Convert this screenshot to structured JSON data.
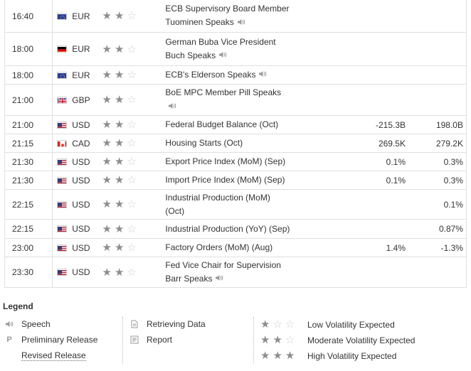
{
  "events": [
    {
      "time": "16:40",
      "currency": "EUR",
      "flag": "eu",
      "stars": 2,
      "event_line1": "ECB Supervisory Board Member",
      "event_line2": "Tuominen Speaks",
      "speech": true,
      "actual": "",
      "forecast": "",
      "previous": ""
    },
    {
      "time": "18:00",
      "currency": "EUR",
      "flag": "de",
      "stars": 2,
      "event_line1": "German Buba Vice President",
      "event_line2": "Buch Speaks",
      "speech": true,
      "actual": "",
      "forecast": "",
      "previous": ""
    },
    {
      "time": "18:00",
      "currency": "EUR",
      "flag": "eu",
      "stars": 2,
      "event_line1": "ECB's Elderson Speaks",
      "event_line2": "",
      "speech": true,
      "actual": "",
      "forecast": "",
      "previous": ""
    },
    {
      "time": "21:00",
      "currency": "GBP",
      "flag": "gb",
      "stars": 2,
      "event_line1": "BoE MPC Member Pill Speaks",
      "event_line2": "",
      "speech": true,
      "actual": "",
      "forecast": "",
      "previous": ""
    },
    {
      "time": "21:00",
      "currency": "USD",
      "flag": "us",
      "stars": 2,
      "event_line1": "Federal Budget Balance (Oct)",
      "event_line2": "",
      "speech": false,
      "actual": "",
      "forecast": "-215.3B",
      "previous": "198.0B"
    },
    {
      "time": "21:15",
      "currency": "CAD",
      "flag": "ca",
      "stars": 2,
      "event_line1": "Housing Starts (Oct)",
      "event_line2": "",
      "speech": false,
      "actual": "",
      "forecast": "269.5K",
      "previous": "279.2K"
    },
    {
      "time": "21:30",
      "currency": "USD",
      "flag": "us",
      "stars": 2,
      "event_line1": "Export Price Index (MoM) (Sep)",
      "event_line2": "",
      "speech": false,
      "actual": "",
      "forecast": "0.1%",
      "previous": "0.3%"
    },
    {
      "time": "21:30",
      "currency": "USD",
      "flag": "us",
      "stars": 2,
      "event_line1": "Import Price Index (MoM) (Sep)",
      "event_line2": "",
      "speech": false,
      "actual": "",
      "forecast": "0.1%",
      "previous": "0.3%"
    },
    {
      "time": "22:15",
      "currency": "USD",
      "flag": "us",
      "stars": 2,
      "event_line1": "Industrial Production (MoM)",
      "event_line2": "(Oct)",
      "speech": false,
      "actual": "",
      "forecast": "",
      "previous": "0.1%"
    },
    {
      "time": "22:15",
      "currency": "USD",
      "flag": "us",
      "stars": 2,
      "event_line1": "Industrial Production (YoY) (Sep)",
      "event_line2": "",
      "speech": false,
      "actual": "",
      "forecast": "",
      "previous": "0.87%"
    },
    {
      "time": "23:00",
      "currency": "USD",
      "flag": "us",
      "stars": 2,
      "event_line1": "Factory Orders (MoM) (Aug)",
      "event_line2": "",
      "speech": false,
      "actual": "",
      "forecast": "1.4%",
      "previous": "-1.3%"
    },
    {
      "time": "23:30",
      "currency": "USD",
      "flag": "us",
      "stars": 2,
      "event_line1": "Fed Vice Chair for Supervision",
      "event_line2": "Barr Speaks",
      "speech": true,
      "actual": "",
      "forecast": "",
      "previous": ""
    }
  ],
  "legend": {
    "title": "Legend",
    "speech": "Speech",
    "preliminary": "Preliminary Release",
    "preliminary_icon": "P",
    "revised": "Revised Release",
    "retrieving": "Retrieving Data",
    "report": "Report",
    "low": "Low Volatility Expected",
    "moderate": "Moderate Volatility Expected",
    "high": "High Volatility Expected"
  },
  "colors": {
    "star_on": "#8d8d8d",
    "star_off": "#cfcfcf",
    "border": "#e0e0e0",
    "text": "#333333"
  },
  "icons": {
    "speech": "speaker-icon",
    "retrieving": "document-icon",
    "report": "report-icon",
    "star": "star-icon"
  }
}
